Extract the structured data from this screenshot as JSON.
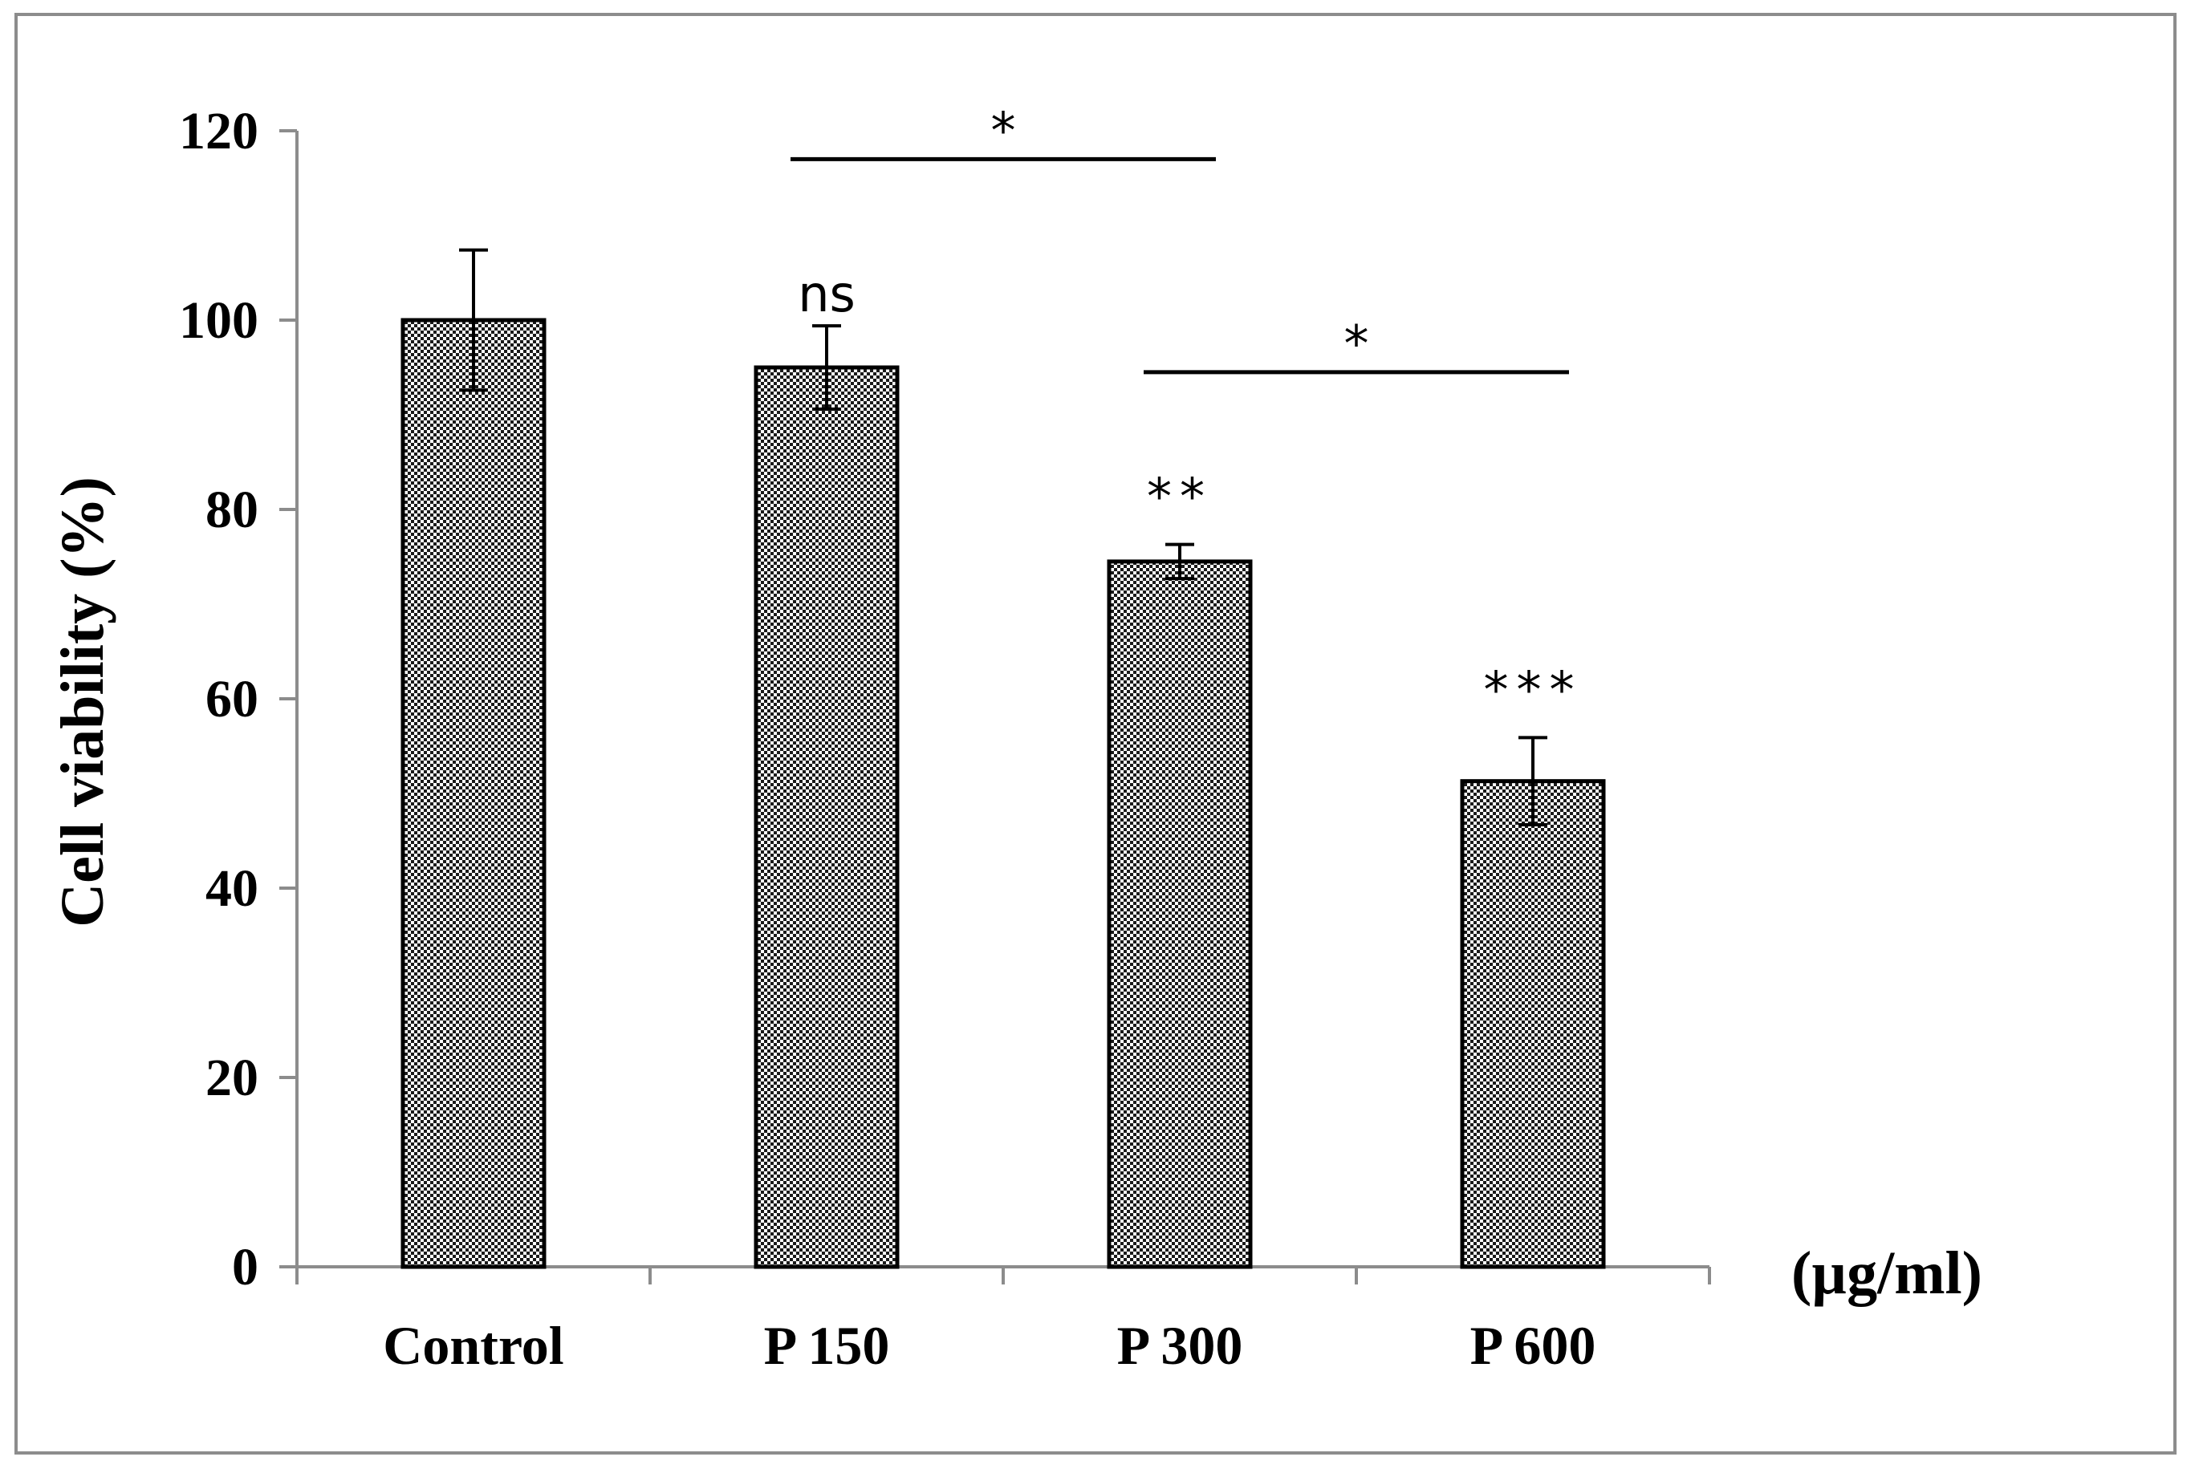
{
  "chart_data": {
    "type": "bar",
    "title": "",
    "xlabel": "",
    "ylabel": "Cell viability (%)",
    "unit_label": "(µg/ml)",
    "categories": [
      "Control",
      "P 150",
      "P 300",
      "P 600"
    ],
    "values": [
      100,
      95,
      74.5,
      51.3
    ],
    "errors": [
      7.4,
      4.4,
      1.8,
      4.6
    ],
    "annotations": [
      "",
      "ns",
      "**",
      "***"
    ],
    "yticks": [
      0,
      20,
      40,
      60,
      80,
      100,
      120
    ],
    "ytick_labels": [
      "0",
      "20",
      "40",
      "60",
      "80",
      "100",
      "120"
    ],
    "ylim": [
      0,
      120
    ],
    "grid": false,
    "bar_fill": "checkered",
    "comparisons": [
      {
        "from": "P 150",
        "to": "P 300",
        "label": "*",
        "y": 117
      },
      {
        "from": "P 300",
        "to": "P 600",
        "label": "*",
        "y": 94.5
      }
    ]
  },
  "colors": {
    "axis": "#8c8c8c",
    "bar_dark": "#000000",
    "bar_light": "#ffffff",
    "text": "#000000"
  }
}
